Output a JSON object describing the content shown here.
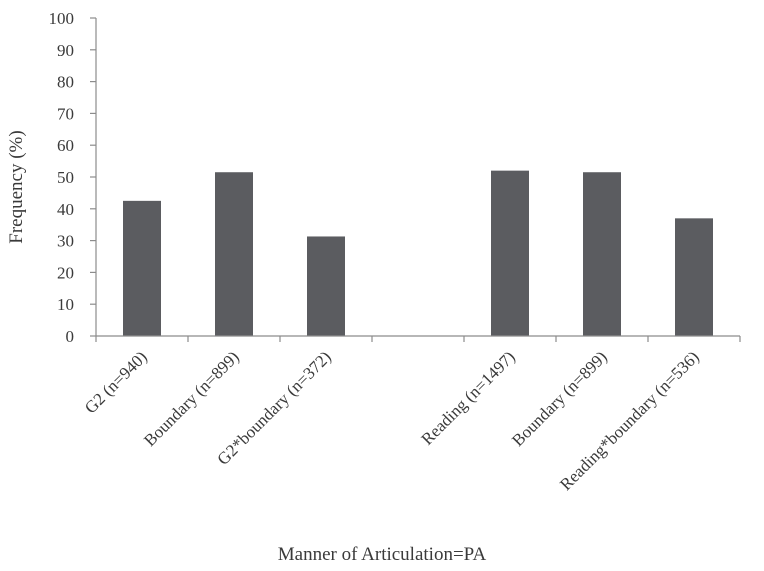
{
  "chart_data": {
    "type": "bar",
    "xlabel": "Manner of Articulation=PA",
    "ylabel": "Frequency (%)",
    "ylim": [
      0,
      100
    ],
    "yticks": [
      0,
      10,
      20,
      30,
      40,
      50,
      60,
      70,
      80,
      90,
      100
    ],
    "grid": false,
    "legend": "none",
    "bar_color": "#5b5c60",
    "categories": [
      "G2 (n=940)",
      "Boundary (n=899)",
      "G2*boundary (n=372)",
      "",
      "Reading (n=1497)",
      "Boundary (n=899)",
      "Reading*boundary (n=536)"
    ],
    "values": [
      42.5,
      51.5,
      31.3,
      null,
      52,
      51.5,
      37
    ]
  }
}
